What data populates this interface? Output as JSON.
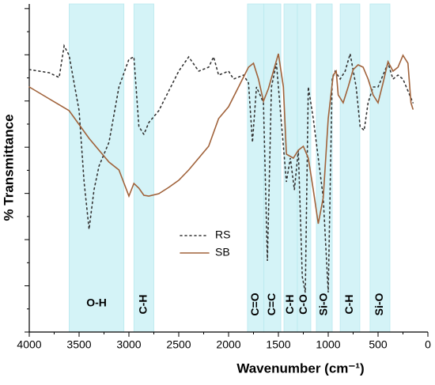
{
  "chart_data": {
    "type": "line",
    "xlabel": "Wavenumber (cm⁻¹)",
    "ylabel": "% Transmittance",
    "xlim": [
      4000,
      0
    ],
    "xticks": [
      4000,
      3500,
      3000,
      2500,
      2000,
      1500,
      1000,
      500,
      0
    ],
    "ylim": [
      0,
      415
    ],
    "legend": "center",
    "band_color": "#d4f3f7",
    "bands": [
      {
        "label": "O-H",
        "from": 3600,
        "to": 3050
      },
      {
        "label": "C-H",
        "from": 2950,
        "to": 2750
      },
      {
        "label": "C=O",
        "from": 1810,
        "to": 1645
      },
      {
        "label": "C=C",
        "from": 1645,
        "to": 1476
      },
      {
        "label": "C-H",
        "from": 1444,
        "to": 1310
      },
      {
        "label": "C-O",
        "from": 1310,
        "to": 1175
      },
      {
        "label": "Si-O",
        "from": 1119,
        "to": 960
      },
      {
        "label": "C-H",
        "from": 880,
        "to": 683
      },
      {
        "label": "Si-O",
        "from": 580,
        "to": 381
      }
    ],
    "series": [
      {
        "name": "RS",
        "color": "#333333",
        "dash": true,
        "x": [
          4000,
          3800,
          3700,
          3650,
          3600,
          3500,
          3450,
          3400,
          3350,
          3300,
          3200,
          3100,
          3000,
          2950,
          2900,
          2850,
          2800,
          2700,
          2600,
          2500,
          2400,
          2300,
          2200,
          2150,
          2100,
          2000,
          1950,
          1850,
          1800,
          1760,
          1720,
          1650,
          1610,
          1570,
          1520,
          1480,
          1420,
          1380,
          1340,
          1300,
          1260,
          1230,
          1200,
          1150,
          1100,
          1050,
          1000,
          960,
          930,
          880,
          830,
          780,
          720,
          680,
          640,
          600,
          550,
          500,
          450,
          400,
          350,
          300,
          250,
          200,
          150
        ],
        "values": [
          332,
          328,
          322,
          362,
          350,
          280,
          190,
          130,
          180,
          210,
          240,
          310,
          345,
          348,
          260,
          250,
          265,
          280,
          305,
          330,
          348,
          330,
          335,
          348,
          325,
          330,
          320,
          325,
          315,
          240,
          310,
          290,
          90,
          310,
          340,
          280,
          190,
          220,
          180,
          230,
          70,
          50,
          310,
          270,
          220,
          170,
          50,
          320,
          330,
          320,
          330,
          352,
          310,
          260,
          255,
          290,
          310,
          310,
          325,
          340,
          320,
          325,
          320,
          305,
          290
        ]
      },
      {
        "name": "SB",
        "color": "#a0623a",
        "dash": false,
        "x": [
          4000,
          3800,
          3600,
          3400,
          3200,
          3100,
          3000,
          2950,
          2900,
          2850,
          2800,
          2700,
          2600,
          2500,
          2400,
          2300,
          2200,
          2100,
          2000,
          1900,
          1800,
          1750,
          1700,
          1650,
          1600,
          1550,
          1500,
          1450,
          1420,
          1350,
          1300,
          1250,
          1200,
          1150,
          1100,
          1050,
          1000,
          950,
          920,
          900,
          850,
          800,
          750,
          700,
          650,
          600,
          550,
          500,
          450,
          400,
          350,
          300,
          250,
          200,
          170,
          150
        ],
        "values": [
          310,
          295,
          280,
          245,
          215,
          205,
          172,
          188,
          182,
          173,
          172,
          175,
          183,
          192,
          205,
          220,
          235,
          270,
          285,
          310,
          335,
          340,
          320,
          292,
          308,
          330,
          352,
          310,
          225,
          220,
          230,
          235,
          220,
          180,
          137,
          170,
          270,
          325,
          330,
          300,
          290,
          310,
          332,
          338,
          335,
          320,
          300,
          290,
          315,
          342,
          330,
          335,
          350,
          340,
          290,
          282
        ]
      }
    ]
  }
}
